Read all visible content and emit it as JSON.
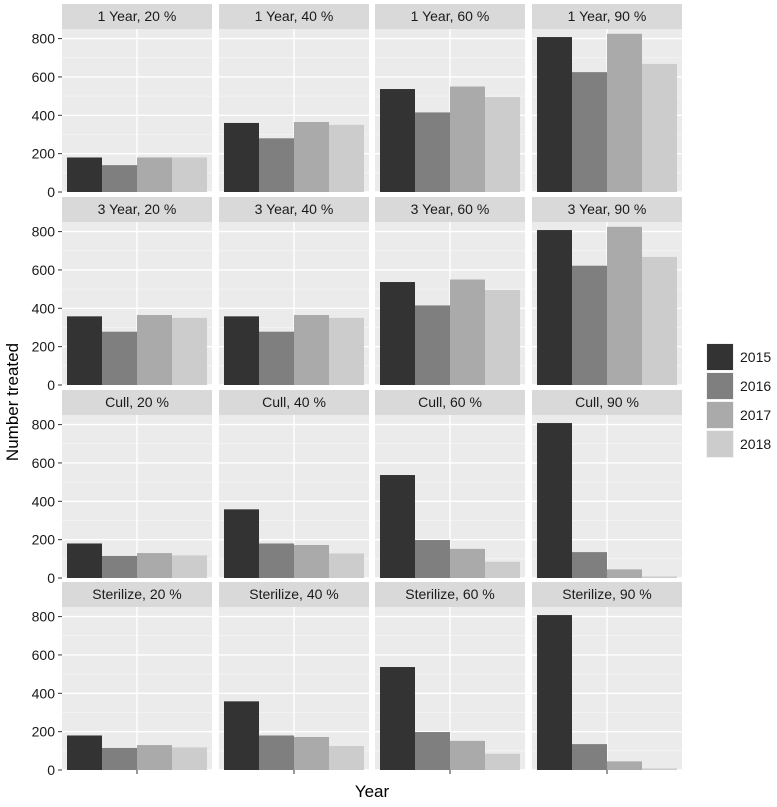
{
  "chart_data": {
    "type": "bar",
    "layout": "faceted-grid",
    "xlabel": "Year",
    "ylabel": "Number treated",
    "ylim": [
      0,
      850
    ],
    "yticks": [
      0,
      200,
      400,
      600,
      800
    ],
    "grid": true,
    "legend_position": "right",
    "legend": [
      {
        "label": "2015",
        "color": "#333333"
      },
      {
        "label": "2016",
        "color": "#7f7f7f"
      },
      {
        "label": "2017",
        "color": "#aaaaaa"
      },
      {
        "label": "2018",
        "color": "#cccccc"
      }
    ],
    "panels": [
      {
        "title": "1 Year, 20 %",
        "values": [
          180,
          140,
          180,
          180
        ]
      },
      {
        "title": "1 Year, 40 %",
        "values": [
          360,
          280,
          365,
          350
        ]
      },
      {
        "title": "1 Year, 60 %",
        "values": [
          537,
          415,
          550,
          495
        ]
      },
      {
        "title": "1 Year, 90 %",
        "values": [
          808,
          625,
          825,
          668
        ]
      },
      {
        "title": "3 Year, 20 %",
        "values": [
          358,
          278,
          365,
          350
        ]
      },
      {
        "title": "3 Year, 40 %",
        "values": [
          358,
          278,
          365,
          350
        ]
      },
      {
        "title": "3 Year, 60 %",
        "values": [
          537,
          415,
          550,
          495
        ]
      },
      {
        "title": "3 Year, 90 %",
        "values": [
          808,
          622,
          825,
          668
        ]
      },
      {
        "title": "Cull, 20 %",
        "values": [
          180,
          115,
          130,
          118
        ]
      },
      {
        "title": "Cull, 40 %",
        "values": [
          358,
          180,
          172,
          128
        ]
      },
      {
        "title": "Cull, 60 %",
        "values": [
          537,
          198,
          152,
          85
        ]
      },
      {
        "title": "Cull, 90 %",
        "values": [
          808,
          135,
          45,
          8
        ]
      },
      {
        "title": "Sterilize, 20 %",
        "values": [
          180,
          115,
          130,
          118
        ]
      },
      {
        "title": "Sterilize, 40 %",
        "values": [
          358,
          180,
          172,
          125
        ]
      },
      {
        "title": "Sterilize, 60 %",
        "values": [
          537,
          198,
          152,
          85
        ]
      },
      {
        "title": "Sterilize, 90 %",
        "values": [
          808,
          135,
          45,
          8
        ]
      }
    ]
  }
}
